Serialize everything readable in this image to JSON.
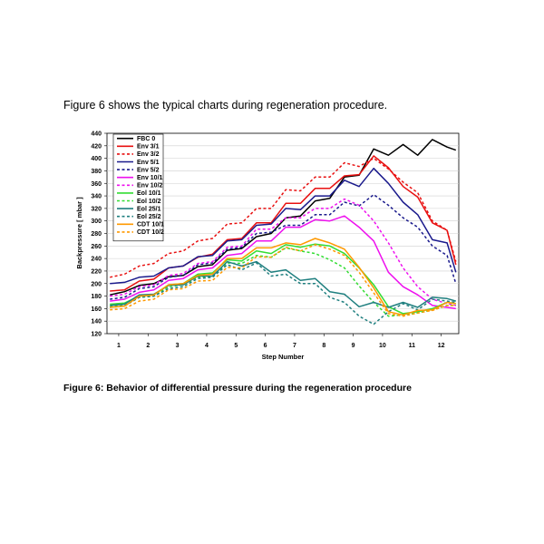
{
  "intro_text": "Figure 6 shows the typical charts during regeneration procedure.",
  "caption": "Figure 6: Behavior of differential pressure during the regeneration procedure",
  "chart_data": {
    "type": "line",
    "xlabel": "Step Number",
    "ylabel": "Backpressure [ mbar ]",
    "xlim": [
      0.6,
      12.6
    ],
    "ylim": [
      120,
      440
    ],
    "y_ticks": [
      120,
      140,
      160,
      180,
      200,
      220,
      240,
      260,
      280,
      300,
      320,
      340,
      360,
      380,
      400,
      420,
      440
    ],
    "x_ticks": [
      1,
      2,
      3,
      4,
      5,
      6,
      7,
      8,
      9,
      10,
      11,
      12
    ],
    "grid": "horizontal",
    "legend_position": "top-left",
    "x": [
      0.7,
      1.2,
      1.7,
      2.2,
      2.7,
      3.2,
      3.7,
      4.2,
      4.7,
      5.2,
      5.7,
      6.2,
      6.7,
      7.2,
      7.7,
      8.2,
      8.7,
      9.2,
      9.7,
      10.2,
      10.7,
      11.2,
      11.7,
      12.2,
      12.5
    ],
    "series": [
      {
        "name": "FBC 0",
        "color": "#000000",
        "dash": false,
        "values": [
          182,
          187,
          197,
          200,
          211,
          213,
          227,
          230,
          253,
          256,
          275,
          280,
          305,
          308,
          332,
          336,
          370,
          373,
          415,
          405,
          422,
          405,
          430,
          418,
          413
        ]
      },
      {
        "name": "Env 3/1",
        "color": "#e81010",
        "dash": false,
        "values": [
          188,
          190,
          204,
          207,
          225,
          228,
          242,
          247,
          270,
          272,
          297,
          297,
          328,
          328,
          352,
          352,
          372,
          374,
          404,
          385,
          355,
          338,
          297,
          285,
          230
        ]
      },
      {
        "name": "Env 3/2",
        "color": "#e81010",
        "dash": true,
        "values": [
          210,
          215,
          228,
          232,
          248,
          252,
          268,
          272,
          295,
          297,
          320,
          320,
          350,
          348,
          370,
          370,
          393,
          387,
          400,
          383,
          362,
          345,
          300,
          285,
          235
        ]
      },
      {
        "name": "Env 5/1",
        "color": "#1a1a8c",
        "dash": false,
        "values": [
          200,
          202,
          210,
          212,
          225,
          228,
          243,
          245,
          268,
          270,
          293,
          295,
          320,
          318,
          340,
          340,
          365,
          355,
          384,
          360,
          330,
          310,
          270,
          265,
          218
        ]
      },
      {
        "name": "Env 5/2",
        "color": "#1a1a8c",
        "dash": true,
        "values": [
          175,
          178,
          192,
          195,
          210,
          213,
          230,
          233,
          255,
          258,
          280,
          282,
          293,
          293,
          310,
          310,
          330,
          324,
          342,
          325,
          305,
          290,
          260,
          245,
          200
        ]
      },
      {
        "name": "Env 10/1",
        "color": "#ee10ee",
        "dash": false,
        "values": [
          172,
          175,
          186,
          190,
          205,
          208,
          222,
          225,
          245,
          248,
          268,
          268,
          290,
          290,
          302,
          300,
          308,
          290,
          268,
          218,
          195,
          182,
          165,
          162,
          160
        ]
      },
      {
        "name": "Env 10/2",
        "color": "#ee10ee",
        "dash": true,
        "values": [
          180,
          183,
          195,
          198,
          213,
          216,
          232,
          235,
          258,
          260,
          287,
          287,
          305,
          305,
          320,
          320,
          335,
          325,
          300,
          265,
          225,
          195,
          175,
          168,
          165
        ]
      },
      {
        "name": "Eol 10/1",
        "color": "#33dd33",
        "dash": false,
        "values": [
          167,
          169,
          180,
          182,
          198,
          200,
          215,
          217,
          238,
          236,
          252,
          248,
          262,
          258,
          263,
          260,
          248,
          225,
          198,
          163,
          152,
          155,
          160,
          170,
          168
        ]
      },
      {
        "name": "Eol 10/2",
        "color": "#33dd33",
        "dash": true,
        "values": [
          163,
          165,
          178,
          180,
          195,
          198,
          210,
          212,
          233,
          232,
          245,
          242,
          257,
          252,
          248,
          238,
          225,
          196,
          170,
          148,
          150,
          153,
          158,
          165,
          165
        ]
      },
      {
        "name": "Eol 25/1",
        "color": "#1f7f7f",
        "dash": false,
        "values": [
          165,
          167,
          182,
          183,
          197,
          198,
          212,
          212,
          235,
          228,
          235,
          218,
          222,
          205,
          208,
          187,
          183,
          163,
          170,
          162,
          170,
          162,
          178,
          176,
          172
        ]
      },
      {
        "name": "Eol 25/2",
        "color": "#1f7f7f",
        "dash": true,
        "values": [
          162,
          164,
          178,
          180,
          192,
          195,
          208,
          210,
          230,
          222,
          233,
          212,
          215,
          200,
          200,
          178,
          170,
          148,
          135,
          155,
          168,
          158,
          175,
          172,
          170
        ]
      },
      {
        "name": "CDT 10/1",
        "color": "#ff9900",
        "dash": false,
        "values": [
          162,
          164,
          180,
          182,
          198,
          200,
          213,
          215,
          240,
          240,
          257,
          257,
          265,
          262,
          272,
          265,
          255,
          226,
          193,
          155,
          150,
          157,
          158,
          170,
          168
        ]
      },
      {
        "name": "CDT 10/2",
        "color": "#ff9900",
        "dash": true,
        "values": [
          158,
          160,
          172,
          175,
          190,
          192,
          204,
          205,
          226,
          225,
          243,
          242,
          258,
          252,
          262,
          255,
          245,
          218,
          185,
          152,
          148,
          153,
          157,
          165,
          165
        ]
      }
    ]
  }
}
